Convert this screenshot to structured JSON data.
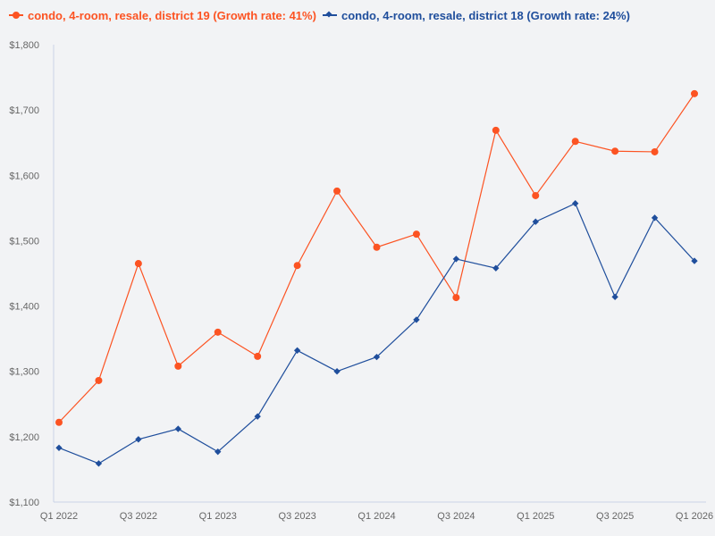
{
  "colors": {
    "background": "#f2f3f5",
    "series_0": "#fc5322",
    "series_1": "#1f4e9c",
    "axis": "#c9d3e6",
    "tick_text": "#666666"
  },
  "legend": {
    "items": [
      {
        "label": "condo, 4-room, resale, district 19 (Growth rate: 41%)",
        "marker": "circle-icon"
      },
      {
        "label": "condo, 4-room, resale, district 18 (Growth rate: 24%)",
        "marker": "diamond-icon"
      }
    ]
  },
  "chart_data": {
    "type": "line",
    "title": "",
    "xlabel": "",
    "ylabel": "",
    "x": [
      "Q1 2022",
      "Q2 2022",
      "Q3 2022",
      "Q4 2022",
      "Q1 2023",
      "Q2 2023",
      "Q3 2023",
      "Q4 2023",
      "Q1 2024",
      "Q2 2024",
      "Q3 2024",
      "Q4 2024",
      "Q1 2025",
      "Q2 2025",
      "Q3 2025",
      "Q4 2025",
      "Q1 2026"
    ],
    "x_tick_labels": [
      "Q1 2022",
      "Q3 2022",
      "Q1 2023",
      "Q3 2023",
      "Q1 2024",
      "Q3 2024",
      "Q1 2025",
      "Q3 2025",
      "Q1 2026"
    ],
    "y_tick_labels": [
      "$1,100",
      "$1,200",
      "$1,300",
      "$1,400",
      "$1,500",
      "$1,600",
      "$1,700",
      "$1,800"
    ],
    "ylim": [
      1100,
      1800
    ],
    "grid": false,
    "legend_position": "top-left",
    "series": [
      {
        "name": "condo, 4-room, resale, district 19 (Growth rate: 41%)",
        "marker": "circle",
        "values": [
          1222,
          1286,
          1465,
          1308,
          1360,
          1323,
          1462,
          1576,
          1490,
          1510,
          1413,
          1669,
          1569,
          1652,
          1637,
          1636,
          1725
        ]
      },
      {
        "name": "condo, 4-room, resale, district 18 (Growth rate: 24%)",
        "marker": "diamond",
        "values": [
          1183,
          1159,
          1196,
          1212,
          1177,
          1231,
          1332,
          1300,
          1322,
          1379,
          1472,
          1458,
          1529,
          1557,
          1414,
          1535,
          1469
        ]
      }
    ]
  }
}
